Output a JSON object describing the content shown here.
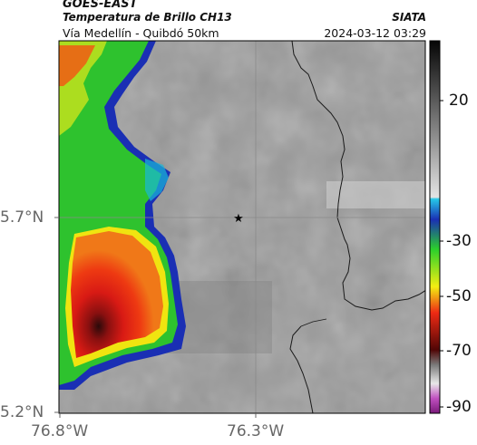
{
  "header": {
    "satellite": "GOES-EAST",
    "product": "Temperatura de Brillo CH13",
    "region": "Vía Medellín - Quibdó 50km",
    "organization": "SIATA",
    "timestamp": "2024-03-12 03:29"
  },
  "axes": {
    "lon_ticks": [
      "76.8°W",
      "76.3°W"
    ],
    "lat_ticks": [
      "5.7°N",
      "5.2°N"
    ]
  },
  "colorbar": {
    "ticks": [
      "20",
      "-30",
      "-50",
      "-70",
      "-90"
    ],
    "range": [
      -95,
      40
    ]
  },
  "colors": {
    "background_gray": "#9a9a9a",
    "cloud_green": "#2ec22e",
    "cloud_red": "#d51919",
    "cloud_yellow": "#f0ea10",
    "cloud_blue": "#1a33b8",
    "cloud_cyan": "#19b8d8",
    "border_line": "#1a1a1a",
    "grid_line": "#8a8a8a"
  },
  "markers": [
    {
      "name": "station",
      "symbol": "★",
      "lon": -76.33,
      "lat": 5.7
    }
  ]
}
